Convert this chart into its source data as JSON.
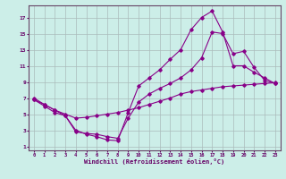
{
  "xlabel": "Windchill (Refroidissement éolien,°C)",
  "ylabel": "",
  "bg_color": "#cceee8",
  "line_color": "#880088",
  "grid_color": "#aabbbb",
  "axis_color": "#660066",
  "spine_color": "#664466",
  "xlim": [
    -0.5,
    23.5
  ],
  "ylim": [
    0.5,
    18.5
  ],
  "xticks": [
    0,
    1,
    2,
    3,
    4,
    5,
    6,
    7,
    8,
    9,
    10,
    11,
    12,
    13,
    14,
    15,
    16,
    17,
    18,
    19,
    20,
    21,
    22,
    23
  ],
  "yticks": [
    1,
    3,
    5,
    7,
    9,
    11,
    13,
    15,
    17
  ],
  "line1_x": [
    0,
    1,
    2,
    3,
    4,
    5,
    6,
    7,
    8,
    9,
    10,
    11,
    12,
    13,
    14,
    15,
    16,
    17,
    18,
    19,
    20,
    21,
    22,
    23
  ],
  "line1_y": [
    7.0,
    6.2,
    5.5,
    4.8,
    3.0,
    2.5,
    2.2,
    1.8,
    1.7,
    5.2,
    8.5,
    9.5,
    10.5,
    11.8,
    13.0,
    15.5,
    17.0,
    17.8,
    15.2,
    11.0,
    11.0,
    10.2,
    9.5,
    8.8
  ],
  "line2_x": [
    0,
    1,
    2,
    3,
    4,
    5,
    6,
    7,
    8,
    9,
    10,
    11,
    12,
    13,
    14,
    15,
    16,
    17,
    18,
    19,
    20,
    21,
    22,
    23
  ],
  "line2_y": [
    6.8,
    6.0,
    5.2,
    4.8,
    2.8,
    2.6,
    2.5,
    2.2,
    2.0,
    4.5,
    6.5,
    7.5,
    8.2,
    8.8,
    9.5,
    10.5,
    12.0,
    15.2,
    15.0,
    12.5,
    12.8,
    10.8,
    9.2,
    8.8
  ],
  "line3_x": [
    0,
    1,
    2,
    3,
    4,
    5,
    6,
    7,
    8,
    9,
    10,
    11,
    12,
    13,
    14,
    15,
    16,
    17,
    18,
    19,
    20,
    21,
    22,
    23
  ],
  "line3_y": [
    6.8,
    6.2,
    5.5,
    5.0,
    4.5,
    4.6,
    4.8,
    5.0,
    5.2,
    5.5,
    5.8,
    6.2,
    6.6,
    7.0,
    7.5,
    7.8,
    8.0,
    8.2,
    8.4,
    8.5,
    8.6,
    8.7,
    8.8,
    8.9
  ]
}
